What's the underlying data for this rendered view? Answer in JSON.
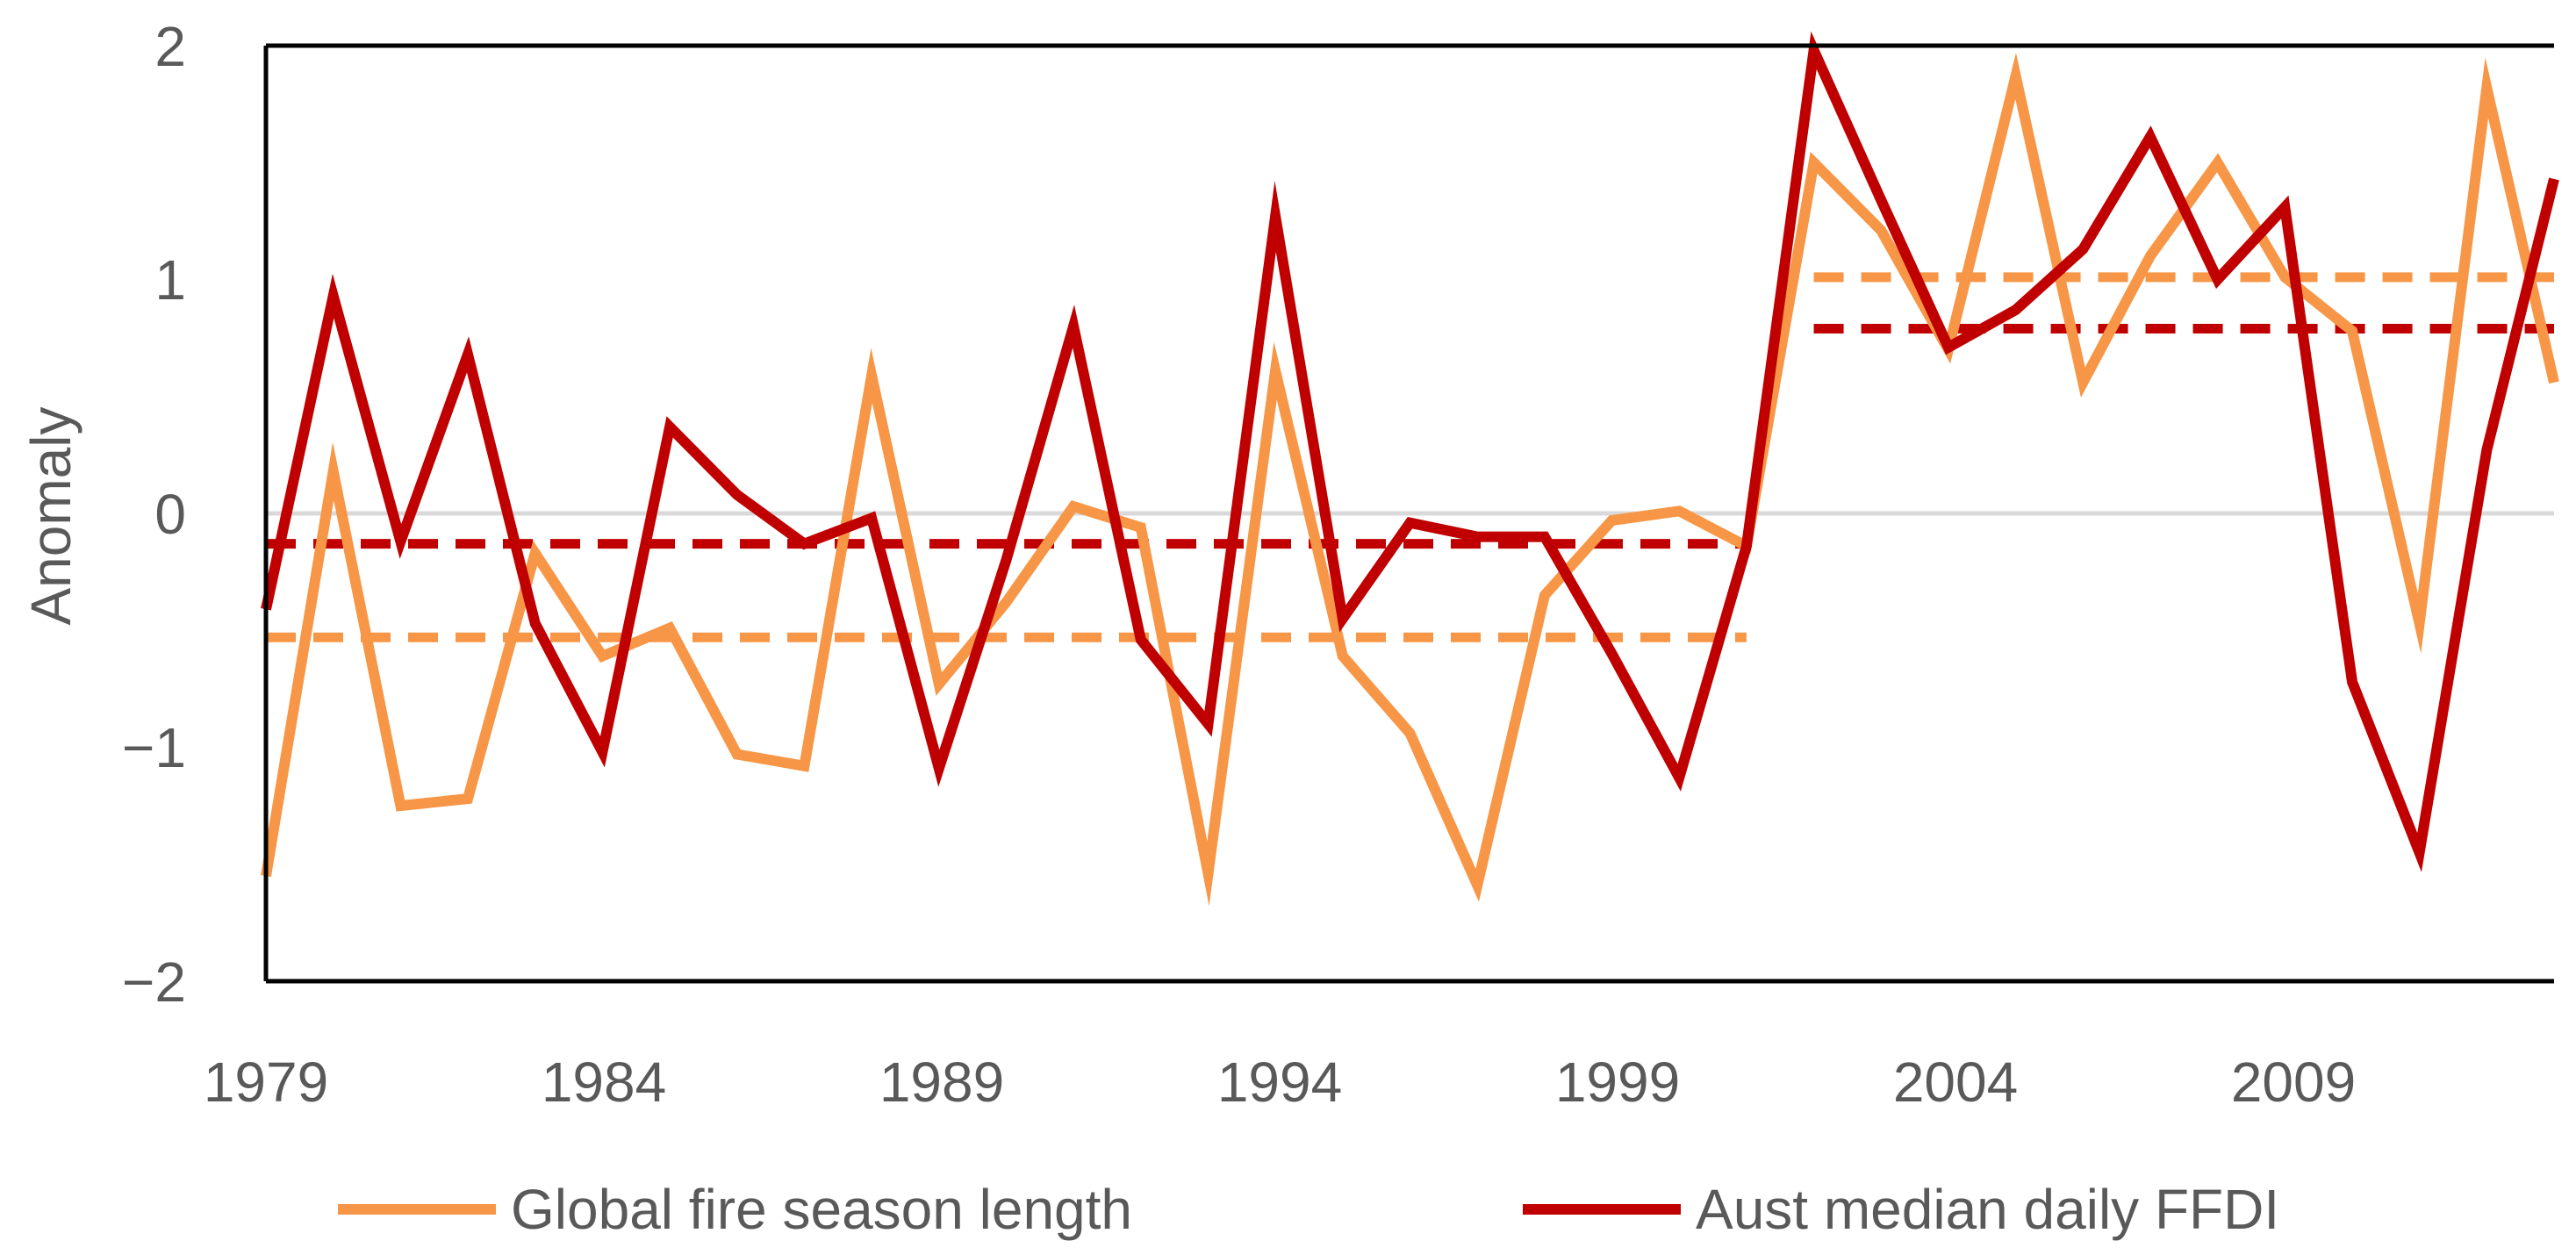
{
  "chart_data": {
    "type": "line",
    "title": "",
    "xlabel": "",
    "ylabel": "Anomaly",
    "xlim": [
      1979,
      2013
    ],
    "ylim": [
      -2,
      2
    ],
    "x_ticks": [
      "1979",
      "1984",
      "1989",
      "1994",
      "1999",
      "2004",
      "2009"
    ],
    "y_ticks": [
      "2",
      "1",
      "0",
      "−2"
    ],
    "y_ticks_minus1": "−1",
    "legend_position": "bottom",
    "years": [
      1979,
      1980,
      1981,
      1982,
      1983,
      1984,
      1985,
      1986,
      1987,
      1988,
      1989,
      1990,
      1991,
      1992,
      1993,
      1994,
      1995,
      1996,
      1997,
      1998,
      1999,
      2000,
      2001,
      2002,
      2003,
      2004,
      2005,
      2006,
      2007,
      2008,
      2009,
      2010,
      2011,
      2012,
      2013
    ],
    "series": [
      {
        "name": "Global fire season length",
        "color": "#f79646",
        "values": [
          -1.55,
          0.18,
          -1.25,
          -1.22,
          -0.17,
          -0.61,
          -0.49,
          -1.03,
          -1.08,
          0.59,
          -0.73,
          -0.38,
          0.03,
          -0.06,
          -1.54,
          0.61,
          -0.61,
          -0.94,
          -1.59,
          -0.35,
          -0.03,
          0.01,
          -0.14,
          1.5,
          1.21,
          0.7,
          1.87,
          0.56,
          1.1,
          1.5,
          1.01,
          0.78,
          -0.47,
          1.82,
          0.56
        ],
        "mean_segments": [
          {
            "from": 1979,
            "to": 2001,
            "value": -0.53
          },
          {
            "from": 2002,
            "to": 2013,
            "value": 1.01
          }
        ]
      },
      {
        "name": "Aust median daily FFDI",
        "color": "#c00000",
        "values": [
          -0.41,
          0.93,
          -0.12,
          0.68,
          -0.47,
          -1.02,
          0.37,
          0.08,
          -0.13,
          -0.02,
          -1.09,
          -0.2,
          0.8,
          -0.54,
          -0.9,
          1.27,
          -0.45,
          -0.04,
          -0.1,
          -0.1,
          -0.6,
          -1.13,
          -0.14,
          1.98,
          1.34,
          0.71,
          0.87,
          1.13,
          1.61,
          1.0,
          1.31,
          -0.72,
          -1.45,
          0.27,
          1.43
        ],
        "mean_segments": [
          {
            "from": 1979,
            "to": 2001,
            "value": -0.13
          },
          {
            "from": 2002,
            "to": 2013,
            "value": 0.79
          }
        ]
      }
    ]
  }
}
